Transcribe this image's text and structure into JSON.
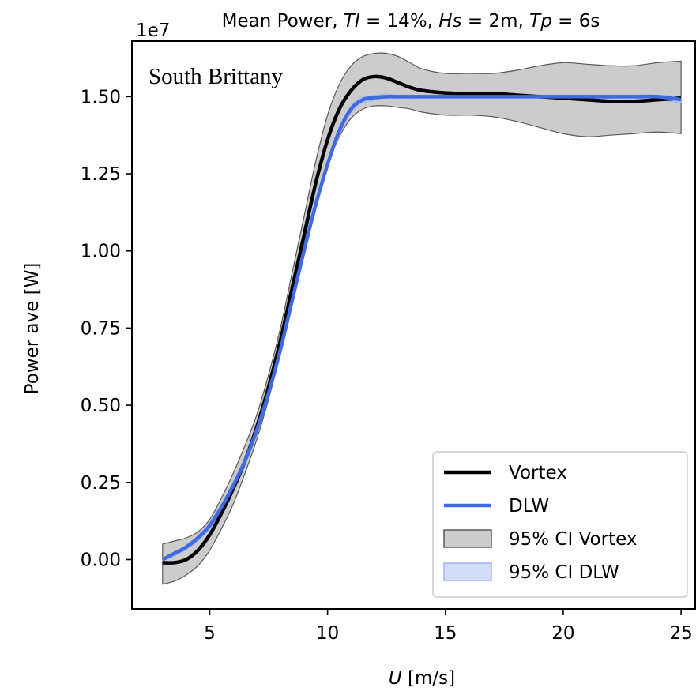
{
  "chart_data": {
    "type": "line",
    "title_parts": [
      {
        "text": "Mean Power, ",
        "italic": false
      },
      {
        "text": "TI",
        "italic": true
      },
      {
        "text": " = 14%, ",
        "italic": false
      },
      {
        "text": "Hs",
        "italic": true
      },
      {
        "text": " = 2m, ",
        "italic": false
      },
      {
        "text": "Tp",
        "italic": true
      },
      {
        "text": " = 6s",
        "italic": false
      }
    ],
    "offset_text": "1e7",
    "annotation": "South Brittany",
    "xlabel_parts": [
      {
        "text": "U",
        "italic": true
      },
      {
        "text": " [m/s]",
        "italic": false
      }
    ],
    "ylabel": "Power ave [W]",
    "xlim": [
      1.7,
      25.6
    ],
    "ylim": [
      -0.16,
      1.68
    ],
    "xticks": [
      5,
      10,
      15,
      20,
      25
    ],
    "xtick_labels": [
      "5",
      "10",
      "15",
      "20",
      "25"
    ],
    "yticks": [
      0.0,
      0.25,
      0.5,
      0.75,
      1.0,
      1.25,
      1.5
    ],
    "ytick_labels": [
      "0.00",
      "0.25",
      "0.50",
      "0.75",
      "1.00",
      "1.25",
      "1.50"
    ],
    "grid": false,
    "legend_position": "bottom-right",
    "colors": {
      "vortex": "#000000",
      "dlw": "#4169e1",
      "ci_vortex_fill": "#808080",
      "ci_vortex_edge": "#595959",
      "ci_dlw_fill": "#c8d4f8",
      "ci_dlw_edge": "#9fb3ee"
    },
    "series": [
      {
        "name": "Vortex",
        "kind": "line",
        "x": [
          3,
          3.5,
          4,
          4.5,
          5,
          5.5,
          6,
          6.5,
          7,
          7.5,
          8,
          8.5,
          9,
          9.5,
          10,
          10.5,
          11,
          11.5,
          12,
          12.5,
          13,
          13.5,
          14,
          15,
          16,
          17,
          18,
          19,
          20,
          21,
          22,
          23,
          24,
          25
        ],
        "y": [
          -0.01,
          -0.01,
          0.0,
          0.03,
          0.08,
          0.15,
          0.23,
          0.32,
          0.43,
          0.56,
          0.71,
          0.88,
          1.05,
          1.22,
          1.36,
          1.46,
          1.52,
          1.555,
          1.565,
          1.56,
          1.545,
          1.53,
          1.52,
          1.512,
          1.51,
          1.51,
          1.505,
          1.5,
          1.495,
          1.49,
          1.485,
          1.485,
          1.49,
          1.495
        ]
      },
      {
        "name": "DLW",
        "kind": "line",
        "x": [
          3,
          3.5,
          4,
          4.5,
          5,
          5.5,
          6,
          6.5,
          7,
          7.5,
          8,
          8.5,
          9,
          9.5,
          10,
          10.5,
          11,
          11.5,
          12,
          12.5,
          13,
          14,
          15,
          16,
          17,
          18,
          19,
          20,
          21,
          22,
          23,
          24,
          25
        ],
        "y": [
          0.0,
          0.02,
          0.04,
          0.07,
          0.11,
          0.17,
          0.24,
          0.32,
          0.42,
          0.54,
          0.68,
          0.84,
          1.0,
          1.15,
          1.28,
          1.39,
          1.46,
          1.49,
          1.497,
          1.5,
          1.5,
          1.5,
          1.5,
          1.5,
          1.5,
          1.5,
          1.5,
          1.5,
          1.5,
          1.5,
          1.5,
          1.5,
          1.49
        ]
      },
      {
        "name": "95% CI Vortex",
        "kind": "band",
        "x": [
          3,
          3.5,
          4,
          4.5,
          5,
          5.5,
          6,
          6.5,
          7,
          7.5,
          8,
          8.5,
          9,
          9.5,
          10,
          10.5,
          11,
          11.5,
          12,
          12.5,
          13,
          13.5,
          14,
          15,
          16,
          17,
          18,
          19,
          20,
          21,
          22,
          23,
          24,
          25
        ],
        "lower": [
          -0.08,
          -0.07,
          -0.05,
          -0.02,
          0.03,
          0.1,
          0.18,
          0.28,
          0.39,
          0.52,
          0.67,
          0.83,
          1.0,
          1.16,
          1.28,
          1.37,
          1.43,
          1.46,
          1.47,
          1.47,
          1.465,
          1.46,
          1.45,
          1.44,
          1.44,
          1.435,
          1.42,
          1.4,
          1.38,
          1.37,
          1.375,
          1.38,
          1.385,
          1.38
        ],
        "upper": [
          0.05,
          0.06,
          0.07,
          0.09,
          0.13,
          0.2,
          0.28,
          0.37,
          0.47,
          0.6,
          0.75,
          0.93,
          1.11,
          1.29,
          1.44,
          1.54,
          1.6,
          1.63,
          1.64,
          1.64,
          1.63,
          1.61,
          1.59,
          1.575,
          1.575,
          1.575,
          1.585,
          1.6,
          1.61,
          1.605,
          1.6,
          1.6,
          1.61,
          1.615
        ]
      },
      {
        "name": "95% CI DLW",
        "kind": "band",
        "x": [
          3,
          4,
          5,
          6,
          7,
          8,
          9,
          10,
          11,
          12,
          13,
          14,
          15,
          16,
          17,
          18,
          19,
          20,
          21,
          22,
          23,
          24,
          25
        ],
        "lower": [
          -0.005,
          0.033,
          0.1,
          0.23,
          0.41,
          0.67,
          0.99,
          1.27,
          1.45,
          1.49,
          1.495,
          1.495,
          1.495,
          1.495,
          1.495,
          1.495,
          1.495,
          1.495,
          1.495,
          1.495,
          1.495,
          1.49,
          1.48
        ],
        "upper": [
          0.005,
          0.047,
          0.12,
          0.25,
          0.43,
          0.69,
          1.01,
          1.29,
          1.47,
          1.504,
          1.505,
          1.505,
          1.505,
          1.505,
          1.505,
          1.505,
          1.505,
          1.505,
          1.505,
          1.505,
          1.505,
          1.505,
          1.5
        ]
      }
    ]
  }
}
